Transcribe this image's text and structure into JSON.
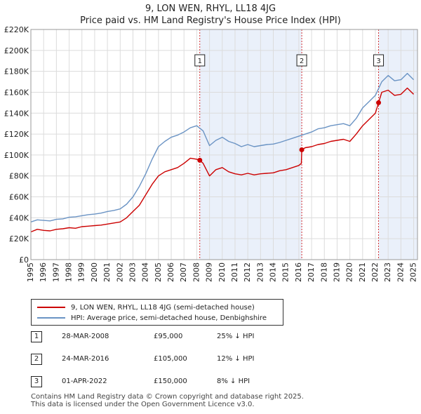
{
  "title_line1": "9, LON WEN, RHYL, LL18 4JG",
  "title_line2": "Price paid vs. HM Land Registry's House Price Index (HPI)",
  "colors": {
    "red": "#cc0000",
    "blue": "#6a93c4",
    "shade": "#eaf0fa",
    "grid": "#dcdcdc"
  },
  "chart_data": {
    "type": "line",
    "title": "Price paid vs. HM Land Registry's House Price Index (HPI)",
    "xlim": [
      1995,
      2025.3
    ],
    "ylim": [
      0,
      220000
    ],
    "x_ticks": [
      "1995",
      "1996",
      "1997",
      "1998",
      "1999",
      "2000",
      "2001",
      "2002",
      "2003",
      "2004",
      "2005",
      "2006",
      "2007",
      "2008",
      "2009",
      "2010",
      "2011",
      "2012",
      "2013",
      "2014",
      "2015",
      "2016",
      "2017",
      "2018",
      "2019",
      "2020",
      "2021",
      "2022",
      "2023",
      "2024",
      "2025"
    ],
    "y_ticks": [
      {
        "value": 0,
        "label": "£0"
      },
      {
        "value": 20000,
        "label": "£20K"
      },
      {
        "value": 40000,
        "label": "£40K"
      },
      {
        "value": 60000,
        "label": "£60K"
      },
      {
        "value": 80000,
        "label": "£80K"
      },
      {
        "value": 100000,
        "label": "£100K"
      },
      {
        "value": 120000,
        "label": "£120K"
      },
      {
        "value": 140000,
        "label": "£140K"
      },
      {
        "value": 160000,
        "label": "£160K"
      },
      {
        "value": 180000,
        "label": "£180K"
      },
      {
        "value": 200000,
        "label": "£200K"
      },
      {
        "value": 220000,
        "label": "£220K"
      }
    ],
    "series": [
      {
        "name": "9, LON WEN, RHYL, LL18 4JG (semi-detached house)",
        "color": "#cc0000",
        "points": [
          [
            1995.0,
            26500
          ],
          [
            1995.5,
            29000
          ],
          [
            1996.0,
            28000
          ],
          [
            1996.5,
            27500
          ],
          [
            1997.0,
            29000
          ],
          [
            1997.5,
            29500
          ],
          [
            1998.0,
            30500
          ],
          [
            1998.5,
            30000
          ],
          [
            1999.0,
            31500
          ],
          [
            1999.5,
            32000
          ],
          [
            2000.0,
            32500
          ],
          [
            2000.5,
            33000
          ],
          [
            2001.0,
            34000
          ],
          [
            2001.5,
            35000
          ],
          [
            2002.0,
            36000
          ],
          [
            2002.5,
            40000
          ],
          [
            2003.0,
            46000
          ],
          [
            2003.5,
            52000
          ],
          [
            2004.0,
            62000
          ],
          [
            2004.5,
            72000
          ],
          [
            2005.0,
            80000
          ],
          [
            2005.5,
            84000
          ],
          [
            2006.0,
            86000
          ],
          [
            2006.5,
            88000
          ],
          [
            2007.0,
            92000
          ],
          [
            2007.5,
            97000
          ],
          [
            2008.0,
            96000
          ],
          [
            2008.24,
            95000
          ],
          [
            2008.5,
            92000
          ],
          [
            2009.0,
            80000
          ],
          [
            2009.5,
            86000
          ],
          [
            2010.0,
            88000
          ],
          [
            2010.5,
            84000
          ],
          [
            2011.0,
            82000
          ],
          [
            2011.5,
            81000
          ],
          [
            2012.0,
            82500
          ],
          [
            2012.5,
            81000
          ],
          [
            2013.0,
            82000
          ],
          [
            2013.5,
            82500
          ],
          [
            2014.0,
            83000
          ],
          [
            2014.5,
            85000
          ],
          [
            2015.0,
            86000
          ],
          [
            2015.5,
            88000
          ],
          [
            2016.0,
            90000
          ],
          [
            2016.2,
            92000
          ],
          [
            2016.23,
            105000
          ],
          [
            2016.5,
            107000
          ],
          [
            2017.0,
            108000
          ],
          [
            2017.5,
            110000
          ],
          [
            2018.0,
            111000
          ],
          [
            2018.5,
            113000
          ],
          [
            2019.0,
            114000
          ],
          [
            2019.5,
            115000
          ],
          [
            2020.0,
            113000
          ],
          [
            2020.5,
            120000
          ],
          [
            2021.0,
            128000
          ],
          [
            2021.5,
            134000
          ],
          [
            2022.0,
            140000
          ],
          [
            2022.25,
            150000
          ],
          [
            2022.5,
            160000
          ],
          [
            2023.0,
            162000
          ],
          [
            2023.5,
            157000
          ],
          [
            2024.0,
            158000
          ],
          [
            2024.5,
            164000
          ],
          [
            2025.0,
            158000
          ]
        ]
      },
      {
        "name": "HPI: Average price, semi-detached house, Denbighshire",
        "color": "#6a93c4",
        "points": [
          [
            1995.0,
            36000
          ],
          [
            1995.5,
            38000
          ],
          [
            1996.0,
            37500
          ],
          [
            1996.5,
            37000
          ],
          [
            1997.0,
            38500
          ],
          [
            1997.5,
            39000
          ],
          [
            1998.0,
            40500
          ],
          [
            1998.5,
            41000
          ],
          [
            1999.0,
            42000
          ],
          [
            1999.5,
            43000
          ],
          [
            2000.0,
            43500
          ],
          [
            2000.5,
            44500
          ],
          [
            2001.0,
            46000
          ],
          [
            2001.5,
            47000
          ],
          [
            2002.0,
            48500
          ],
          [
            2002.5,
            53000
          ],
          [
            2003.0,
            60000
          ],
          [
            2003.5,
            70000
          ],
          [
            2004.0,
            82000
          ],
          [
            2004.5,
            96000
          ],
          [
            2005.0,
            108000
          ],
          [
            2005.5,
            113000
          ],
          [
            2006.0,
            117000
          ],
          [
            2006.5,
            119000
          ],
          [
            2007.0,
            122000
          ],
          [
            2007.5,
            126000
          ],
          [
            2008.0,
            128000
          ],
          [
            2008.5,
            123000
          ],
          [
            2009.0,
            109000
          ],
          [
            2009.5,
            114000
          ],
          [
            2010.0,
            117000
          ],
          [
            2010.5,
            113000
          ],
          [
            2011.0,
            111000
          ],
          [
            2011.5,
            108000
          ],
          [
            2012.0,
            110000
          ],
          [
            2012.5,
            108000
          ],
          [
            2013.0,
            109000
          ],
          [
            2013.5,
            110000
          ],
          [
            2014.0,
            110500
          ],
          [
            2014.5,
            112000
          ],
          [
            2015.0,
            114000
          ],
          [
            2015.5,
            116000
          ],
          [
            2016.0,
            118000
          ],
          [
            2016.5,
            120000
          ],
          [
            2017.0,
            122000
          ],
          [
            2017.5,
            125000
          ],
          [
            2018.0,
            126000
          ],
          [
            2018.5,
            128000
          ],
          [
            2019.0,
            129000
          ],
          [
            2019.5,
            130000
          ],
          [
            2020.0,
            128000
          ],
          [
            2020.5,
            135000
          ],
          [
            2021.0,
            145000
          ],
          [
            2021.5,
            151000
          ],
          [
            2022.0,
            157000
          ],
          [
            2022.5,
            170000
          ],
          [
            2023.0,
            176000
          ],
          [
            2023.5,
            171000
          ],
          [
            2024.0,
            172000
          ],
          [
            2024.5,
            178000
          ],
          [
            2025.0,
            172000
          ]
        ]
      }
    ],
    "transactions": [
      {
        "label": "1",
        "x": 2008.24,
        "price": 95000
      },
      {
        "label": "2",
        "x": 2016.23,
        "price": 105000
      },
      {
        "label": "3",
        "x": 2022.25,
        "price": 150000
      }
    ],
    "shaded_regions": [
      [
        2008.24,
        2016.23
      ],
      [
        2022.25,
        2025.3
      ]
    ]
  },
  "legend": {
    "red_label": "9, LON WEN, RHYL, LL18 4JG (semi-detached house)",
    "blue_label": "HPI: Average price, semi-detached house, Denbighshire"
  },
  "transactions_table": [
    {
      "num": "1",
      "date": "28-MAR-2008",
      "price": "£95,000",
      "hpi": "25% ↓ HPI"
    },
    {
      "num": "2",
      "date": "24-MAR-2016",
      "price": "£105,000",
      "hpi": "12% ↓ HPI"
    },
    {
      "num": "3",
      "date": "01-APR-2022",
      "price": "£150,000",
      "hpi": "8% ↓ HPI"
    }
  ],
  "footer_line1": "Contains HM Land Registry data © Crown copyright and database right 2025.",
  "footer_line2": "This data is licensed under the Open Government Licence v3.0."
}
